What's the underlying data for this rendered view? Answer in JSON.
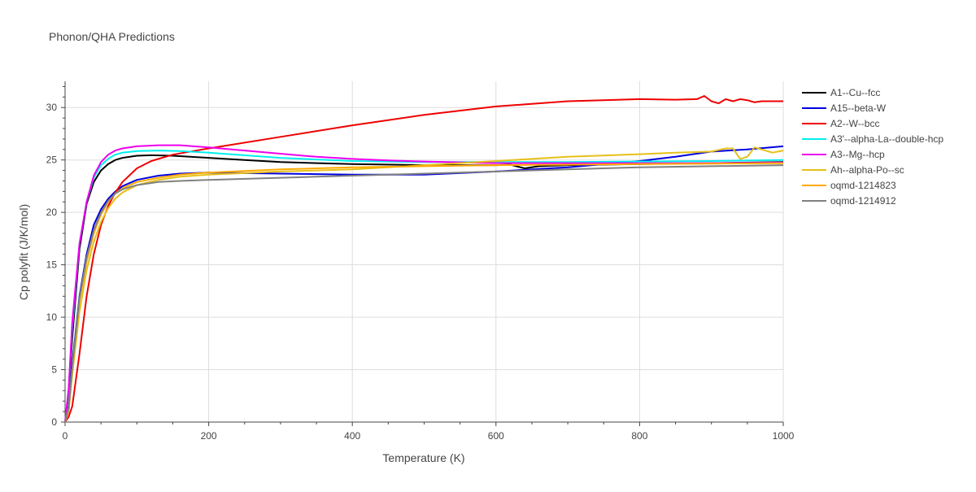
{
  "chart_data": {
    "type": "line",
    "title": "Phonon/QHA Predictions",
    "xlabel": "Temperature (K)",
    "ylabel": "Cp polyfit (J/K/mol)",
    "xlim": [
      0,
      1000
    ],
    "ylim": [
      0,
      32.5
    ],
    "xticks": [
      0,
      200,
      400,
      600,
      800,
      1000
    ],
    "yticks": [
      0,
      5,
      10,
      15,
      20,
      25,
      30
    ],
    "grid": true,
    "legend_position": "right",
    "series": [
      {
        "name": "A1--Cu--fcc",
        "color": "#000000",
        "x": [
          0,
          5,
          10,
          20,
          30,
          40,
          50,
          60,
          70,
          80,
          100,
          120,
          150,
          200,
          250,
          300,
          400,
          500,
          600,
          620,
          640,
          660,
          700,
          800,
          900,
          1000
        ],
        "y": [
          0,
          2.5,
          8.0,
          16.5,
          20.8,
          22.9,
          24.0,
          24.6,
          25.0,
          25.2,
          25.4,
          25.45,
          25.4,
          25.2,
          25.0,
          24.8,
          24.6,
          24.5,
          24.5,
          24.55,
          24.2,
          24.4,
          24.5,
          24.6,
          24.7,
          24.8
        ]
      },
      {
        "name": "A15--beta-W",
        "color": "#0000dd",
        "x": [
          0,
          5,
          10,
          20,
          30,
          40,
          50,
          60,
          70,
          80,
          100,
          130,
          160,
          200,
          300,
          400,
          500,
          600,
          700,
          800,
          850,
          900,
          950,
          1000
        ],
        "y": [
          0,
          1.5,
          5.5,
          12.0,
          16.0,
          18.8,
          20.3,
          21.3,
          22.0,
          22.5,
          23.1,
          23.5,
          23.7,
          23.8,
          23.7,
          23.6,
          23.6,
          23.9,
          24.3,
          24.9,
          25.3,
          25.8,
          26.0,
          26.3
        ]
      },
      {
        "name": "A2--W--bcc",
        "color": "#ee0000",
        "x": [
          0,
          5,
          10,
          20,
          30,
          40,
          50,
          60,
          70,
          80,
          100,
          120,
          150,
          200,
          300,
          400,
          500,
          600,
          700,
          800,
          850,
          880,
          890,
          900,
          910,
          920,
          930,
          940,
          950,
          960,
          970,
          980,
          1000
        ],
        "y": [
          0,
          0.5,
          1.5,
          6.5,
          12.0,
          16.0,
          18.8,
          20.6,
          21.9,
          22.9,
          24.2,
          24.9,
          25.5,
          26.1,
          27.2,
          28.3,
          29.3,
          30.1,
          30.6,
          30.8,
          30.75,
          30.8,
          31.1,
          30.6,
          30.4,
          30.8,
          30.6,
          30.8,
          30.7,
          30.5,
          30.6,
          30.6,
          30.6
        ]
      },
      {
        "name": "A3'--alpha-La--double-hcp",
        "color": "#00eeee",
        "x": [
          0,
          5,
          10,
          20,
          30,
          40,
          50,
          60,
          70,
          80,
          100,
          130,
          160,
          200,
          300,
          400,
          500,
          600,
          700,
          800,
          900,
          1000
        ],
        "y": [
          0,
          3.0,
          9.0,
          17.0,
          21.0,
          23.3,
          24.5,
          25.1,
          25.5,
          25.7,
          25.85,
          25.9,
          25.85,
          25.7,
          25.2,
          24.9,
          24.8,
          24.8,
          24.8,
          24.85,
          24.9,
          25.0
        ]
      },
      {
        "name": "A3--Mg--hcp",
        "color": "#ee00ee",
        "x": [
          0,
          5,
          10,
          20,
          30,
          40,
          50,
          60,
          70,
          80,
          100,
          130,
          160,
          200,
          250,
          300,
          350,
          400,
          450,
          500,
          600,
          700,
          800,
          900,
          1000
        ],
        "y": [
          0,
          3.2,
          9.5,
          17.0,
          21.0,
          23.5,
          24.8,
          25.5,
          25.9,
          26.1,
          26.3,
          26.4,
          26.4,
          26.2,
          25.9,
          25.6,
          25.3,
          25.1,
          24.95,
          24.85,
          24.7,
          24.7,
          24.7,
          24.7,
          24.75
        ]
      },
      {
        "name": "Ah--alpha-Po--sc",
        "color": "#e6c01a",
        "x": [
          0,
          5,
          10,
          20,
          30,
          40,
          50,
          60,
          70,
          80,
          100,
          130,
          160,
          200,
          300,
          400,
          500,
          600,
          700,
          800,
          850,
          900,
          920,
          930,
          940,
          950,
          960,
          970,
          985,
          1000
        ],
        "y": [
          0,
          1.0,
          4.5,
          10.5,
          14.5,
          17.2,
          19.1,
          20.4,
          21.3,
          21.9,
          22.6,
          23.1,
          23.4,
          23.6,
          23.9,
          24.1,
          24.5,
          24.9,
          25.3,
          25.55,
          25.7,
          25.8,
          26.1,
          26.1,
          25.1,
          25.3,
          26.2,
          26.0,
          25.7,
          25.9
        ]
      },
      {
        "name": "oqmd-1214823",
        "color": "#ffaa00",
        "x": [
          0,
          5,
          10,
          20,
          30,
          40,
          50,
          60,
          70,
          80,
          100,
          130,
          160,
          200,
          300,
          400,
          500,
          600,
          700,
          800,
          900,
          1000
        ],
        "y": [
          0,
          1.3,
          5.0,
          11.5,
          15.3,
          18.0,
          19.8,
          21.0,
          21.8,
          22.3,
          22.9,
          23.3,
          23.6,
          23.8,
          24.1,
          24.3,
          24.4,
          24.5,
          24.55,
          24.6,
          24.65,
          24.7
        ]
      },
      {
        "name": "oqmd-1214912",
        "color": "#808080",
        "x": [
          0,
          5,
          10,
          20,
          30,
          40,
          50,
          60,
          70,
          80,
          100,
          130,
          160,
          200,
          300,
          400,
          500,
          600,
          700,
          800,
          900,
          1000
        ],
        "y": [
          0,
          1.3,
          5.2,
          11.8,
          15.7,
          18.3,
          20.0,
          21.1,
          21.8,
          22.2,
          22.6,
          22.9,
          23.0,
          23.1,
          23.3,
          23.5,
          23.7,
          23.9,
          24.1,
          24.3,
          24.4,
          24.5
        ]
      }
    ]
  }
}
